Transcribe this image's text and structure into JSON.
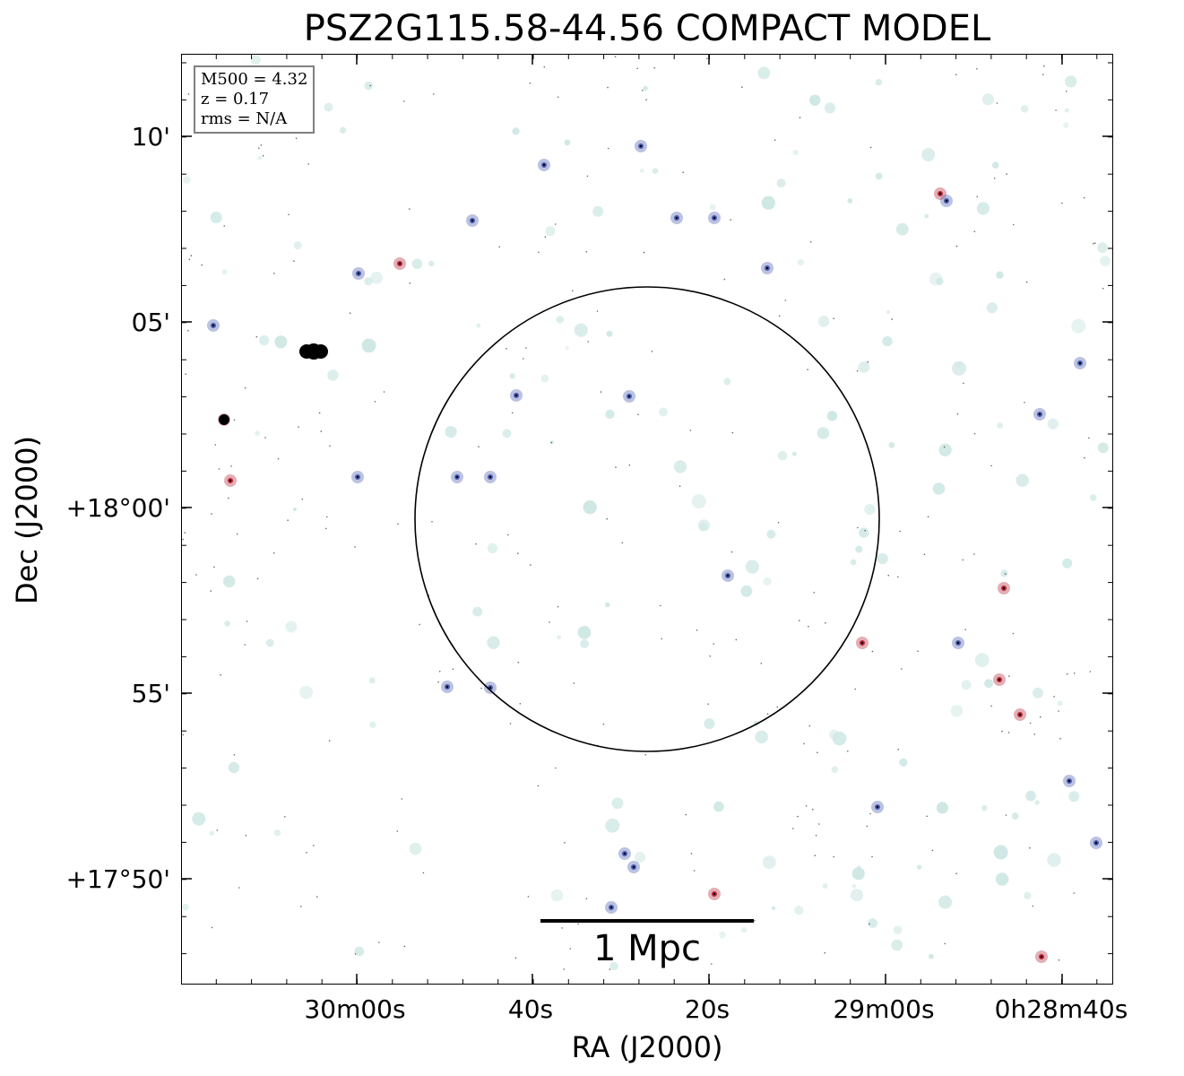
{
  "figure": {
    "title": "PSZ2G115.58-44.56 COMPACT MODEL",
    "info_box": {
      "line1": "M500 = 4.32",
      "line2": "z = 0.17",
      "line3": "rms = N/A"
    },
    "x_axis": {
      "label": "RA (J2000)",
      "ticks": [
        "30m00s",
        "40s",
        "20s",
        "29m00s",
        "0h28m40s"
      ]
    },
    "y_axis": {
      "label": "Dec (J2000)",
      "ticks": [
        "10'",
        "05'",
        "+18°00'",
        "55'",
        "+17°50'"
      ]
    },
    "scale_bar": {
      "label": "1 Mpc"
    }
  },
  "colors": {
    "faint_source": "#cfe8e4",
    "blue_source": "#3b4fa8",
    "red_source": "#b2182b",
    "background": "#ffffff"
  }
}
